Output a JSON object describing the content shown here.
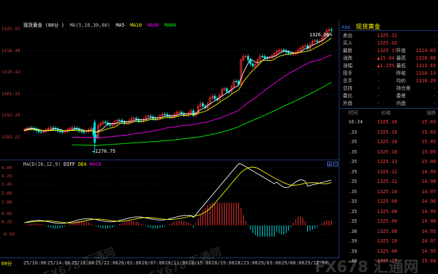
{
  "header": {
    "instrument": "现货黄金",
    "period": "60分",
    "ma_params": "MA(5,10,30,60)",
    "ma_labels": [
      "MA5",
      "MA10",
      "MA30",
      "MA60"
    ],
    "ma_colors": [
      "#ffffff",
      "#ffff00",
      "#ff00ff",
      "#00ff00"
    ]
  },
  "main_axis": {
    "ticks": [
      "1325.55",
      "1318.49",
      "1310.42",
      "1301.35",
      "1292.29",
      "1283.22"
    ]
  },
  "annotations": {
    "high_label": "1326.08",
    "low_label": "1276.75"
  },
  "macd": {
    "title": "MACD(26,12,9)",
    "labels": [
      "DIFF",
      "DEA",
      "MACD"
    ],
    "ticks": [
      "4.60",
      "4.25",
      "3.45",
      "2.60",
      "1.80",
      "0.95",
      "0.25",
      "-0.50"
    ]
  },
  "time_axis": {
    "period_label": "60分",
    "ticks": [
      "25/10:00",
      "25/14:00",
      "25/18:00",
      "25/22:00",
      "26/02:00",
      "28/07:00",
      "28/11:00",
      "28/15:00",
      "28/19:00",
      "28/23:00",
      "29/03:00",
      "29/08:00",
      "29/12:00"
    ]
  },
  "quote": {
    "code": "XAU",
    "name": "现货黄金",
    "rows": [
      {
        "k": "卖出",
        "v": "1325.32",
        "k2": "",
        "v2": "-"
      },
      {
        "k": "买入",
        "v": "1325.02",
        "k2": "",
        "v2": "-"
      },
      {
        "k": "最新",
        "v": "1325.17",
        "k2": "开盘",
        "v2": "1314.83"
      },
      {
        "k": "涨跌",
        "v": "▲15.04",
        "k2": "最高",
        "v2": "1326.08"
      },
      {
        "k": "涨幅",
        "v": "▲1.15%",
        "k2": "最低",
        "v2": "1313.65"
      },
      {
        "k": "现手",
        "v": "-",
        "k2": "昨收",
        "v2": "1310.13"
      },
      {
        "k": "总手",
        "v": "-",
        "k2": "均价",
        "v2": "1318.26"
      },
      {
        "k": "总持",
        "v": "-",
        "k2": "持仓差",
        "v2": "-"
      },
      {
        "k": "委比",
        "v": "-",
        "k2": "委差",
        "v2": "-"
      },
      {
        "k": "外盘",
        "v": "-",
        "k2": "内盘",
        "v2": "-"
      }
    ],
    "trade_headers": [
      "时间",
      "价格",
      "涨跌"
    ],
    "trades": [
      {
        "t": "16:34",
        "p": "1325.16",
        "c": "15.03"
      },
      {
        "t": ".33",
        "p": "1325.16",
        "c": "15.03"
      },
      {
        "t": ".35",
        "p": "1325.18",
        "c": "15.05"
      },
      {
        "t": ".35",
        "p": "1325.18",
        "c": "15.05"
      },
      {
        "t": ".35",
        "p": "1325.13",
        "c": "15.00"
      },
      {
        "t": ".35",
        "p": "1325.12",
        "c": "14.99"
      },
      {
        "t": ".35",
        "p": "1325.11",
        "c": "14.98"
      },
      {
        "t": ".35",
        "p": "1325.10",
        "c": "14.97"
      },
      {
        "t": ".35",
        "p": "1325.09",
        "c": "14.96"
      },
      {
        "t": ".35",
        "p": "1325.08",
        "c": "14.95"
      },
      {
        "t": ".35",
        "p": "1325.09",
        "c": "14.96"
      },
      {
        "t": ".38",
        "p": "1325.08",
        "c": "14.95"
      },
      {
        "t": ".39",
        "p": "1325.10",
        "c": "14.97"
      },
      {
        "t": ".39",
        "p": "1325.08",
        "c": "14.95"
      },
      {
        "t": ".40",
        "p": "1325.17",
        "c": "15.04"
      }
    ]
  },
  "watermark": [
    "FX678 汇通网",
    "FX678 汇通网",
    "FX678 汇通网"
  ]
}
